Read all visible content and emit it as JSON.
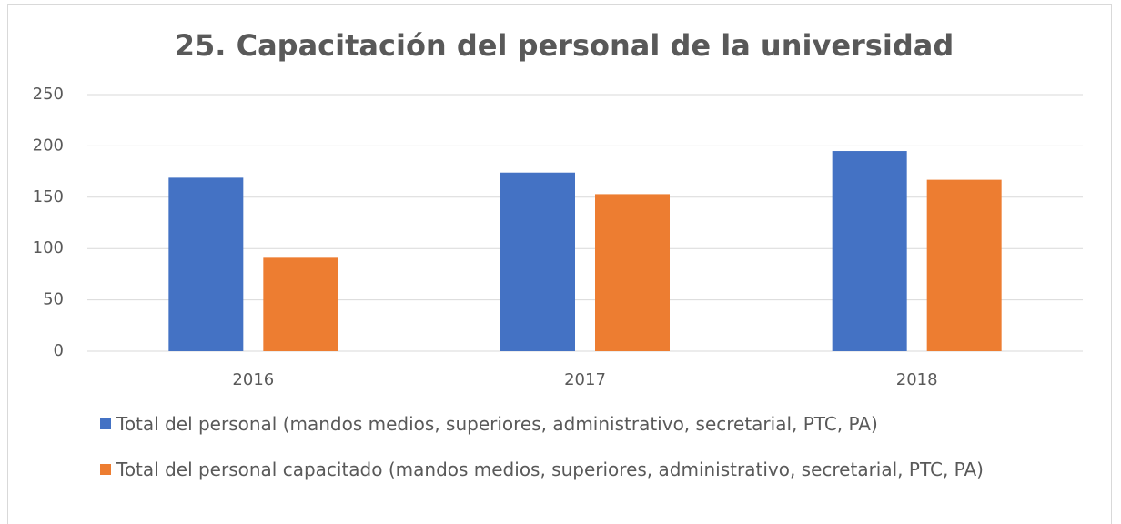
{
  "chart_data": {
    "type": "bar",
    "title": "25. Capacitación del personal de la universidad",
    "categories": [
      "2016",
      "2017",
      "2018"
    ],
    "series": [
      {
        "name": "Total del personal (mandos medios, superiores, administrativo, secretarial, PTC, PA)",
        "color": "#4472c4",
        "values": [
          169,
          174,
          195
        ]
      },
      {
        "name": "Total del personal capacitado (mandos medios, superiores, administrativo, secretarial, PTC, PA)",
        "color": "#ed7d31",
        "values": [
          91,
          153,
          167
        ]
      }
    ],
    "ylim": [
      0,
      250
    ],
    "yticks": [
      0,
      50,
      100,
      150,
      200,
      250
    ],
    "grid": true,
    "legend": "bottom"
  }
}
